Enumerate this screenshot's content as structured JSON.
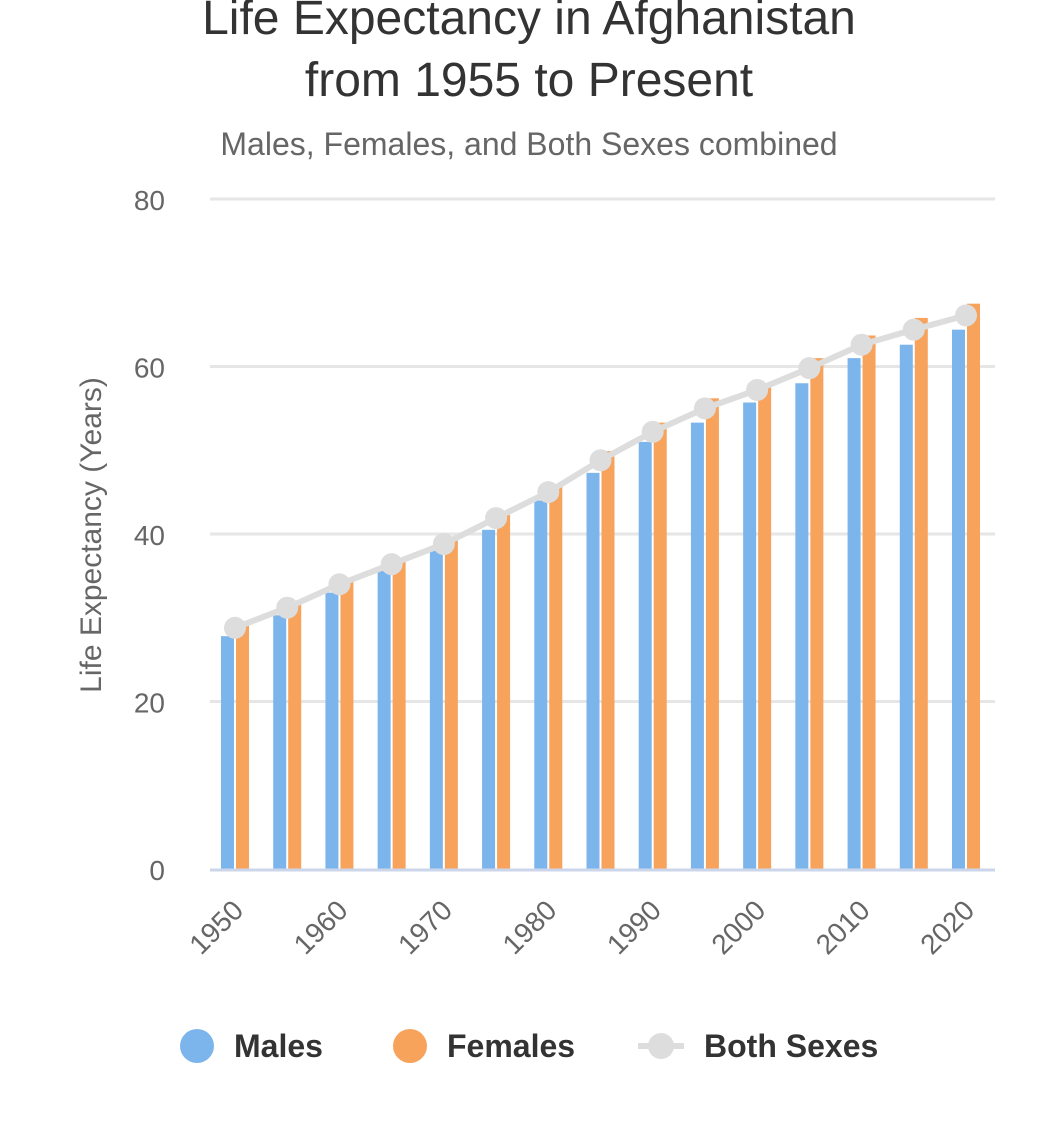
{
  "chart_data": {
    "type": "bar",
    "title_line1": "Life Expectancy in Afghanistan",
    "title_line2": "from 1955 to Present",
    "subtitle": "Males, Females, and Both Sexes combined",
    "ylabel": "Life Expectancy (Years)",
    "xlabel": "",
    "ylim": [
      0,
      80
    ],
    "y_ticks": [
      0,
      20,
      40,
      60,
      80
    ],
    "x_range": [
      1950,
      2020
    ],
    "x_tick_labels": [
      "1950",
      "1960",
      "1970",
      "1980",
      "1990",
      "2000",
      "2010",
      "2020"
    ],
    "x": [
      1950,
      1955,
      1960,
      1965,
      1970,
      1975,
      1980,
      1985,
      1990,
      1995,
      2000,
      2005,
      2010,
      2015,
      2020
    ],
    "grid": true,
    "legend_position": "bottom",
    "series": [
      {
        "name": "Males",
        "type": "bar",
        "color": "#7cb5ec",
        "values": [
          27.8,
          30.3,
          33.0,
          35.6,
          38.0,
          40.5,
          44.0,
          47.3,
          51.0,
          53.3,
          55.7,
          58.0,
          61.0,
          62.6,
          64.4
        ]
      },
      {
        "name": "Females",
        "type": "bar",
        "color": "#f7a35c",
        "values": [
          29.3,
          31.8,
          34.6,
          37.0,
          39.3,
          42.3,
          45.7,
          49.9,
          53.3,
          56.2,
          58.0,
          61.0,
          63.7,
          65.8,
          67.5
        ]
      },
      {
        "name": "Both Sexes",
        "type": "line",
        "color": "#dddddd",
        "values": [
          28.8,
          31.2,
          34.0,
          36.4,
          38.8,
          41.9,
          45.0,
          48.8,
          52.2,
          55.0,
          57.2,
          59.8,
          62.6,
          64.4,
          66.1
        ]
      }
    ]
  },
  "legend": {
    "males_label": "Males",
    "females_label": "Females",
    "both_label": "Both Sexes"
  }
}
